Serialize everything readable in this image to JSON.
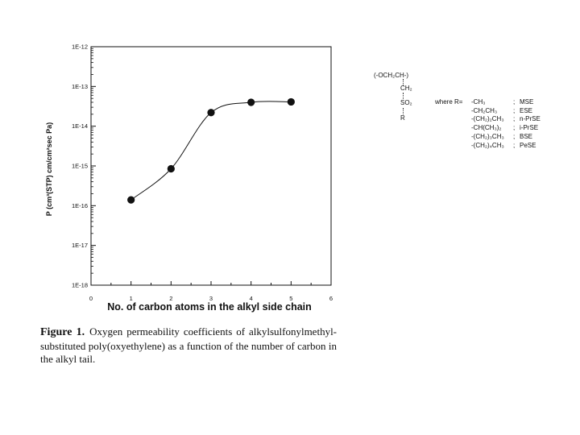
{
  "chart_data": {
    "type": "scatter",
    "xlabel": "No. of carbon atoms in the alkyl side chain",
    "ylabel": "P (cm³(STP) cm/cm²sec Pa)",
    "x_ticks": [
      "0",
      "1",
      "2",
      "3",
      "4",
      "5",
      "6"
    ],
    "y_ticks": [
      "1E-12",
      "1E-13",
      "1E-14",
      "1E-15",
      "1E-16",
      "1E-17",
      "1E-18"
    ],
    "xlim": [
      0,
      6
    ],
    "ylim": [
      1e-18,
      1e-12
    ],
    "y_scale": "log",
    "grid": false,
    "smooth_curve": true,
    "points": [
      {
        "x": 1,
        "y": 1.4e-16
      },
      {
        "x": 2,
        "y": 8.5e-16
      },
      {
        "x": 3,
        "y": 2.2e-14
      },
      {
        "x": 4,
        "y": 4e-14
      },
      {
        "x": 5,
        "y": 4.1e-14
      }
    ]
  },
  "structure": {
    "repeat_unit": "(-OCH₂CH-)",
    "side_1": "CH₂",
    "side_2": "SO₂",
    "side_3": "R",
    "where_label": "where R=",
    "substituents": [
      {
        "formula": "-CH₃",
        "sep": ";",
        "name": "MSE"
      },
      {
        "formula": "-CH₂CH₃",
        "sep": ";",
        "name": "ESE"
      },
      {
        "formula": "-(CH₂)₂CH₃",
        "sep": ";",
        "name": "n-PrSE"
      },
      {
        "formula": "-CH(CH₃)₂",
        "sep": ";",
        "name": "i-PrSE"
      },
      {
        "formula": "-(CH₂)₃CH₃",
        "sep": ";",
        "name": "BSE"
      },
      {
        "formula": "-(CH₂)₄CH₃",
        "sep": ";",
        "name": "PeSE"
      }
    ]
  },
  "caption": {
    "label": "Figure 1.",
    "text": "Oxygen permeability coefficients of alkylsulfonylmethyl-substituted poly(oxyethylene) as a function of the number of carbon in the alkyl tail."
  }
}
